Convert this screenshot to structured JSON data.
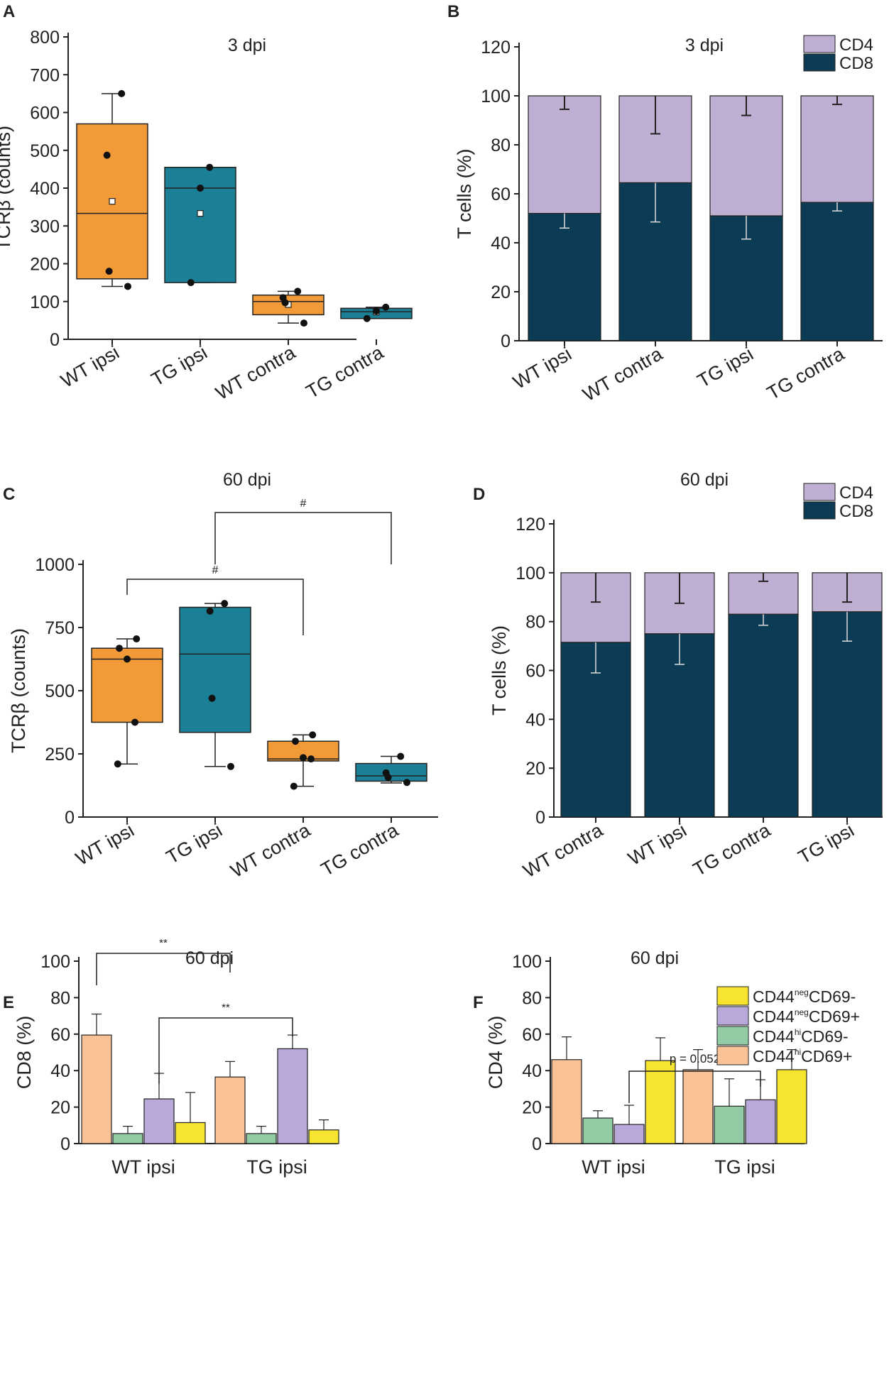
{
  "colors": {
    "orange": "#F39A38",
    "teal": "#1B7F96",
    "cd4": "#BFB0D3",
    "cd8": "#0C3B55",
    "salmon": "#F9C196",
    "mint": "#91CCA5",
    "lavender": "#B9A8DA",
    "yellow": "#F6E42E"
  },
  "chart_data": [
    {
      "panel": "A",
      "type": "box",
      "title": "3 dpi",
      "ylabel": "TCRβ (counts)",
      "ylim": [
        0,
        800
      ],
      "yticks": [
        "0",
        "100",
        "200",
        "300",
        "400",
        "500",
        "600",
        "700",
        "800"
      ],
      "categories": [
        "WT ipsi",
        "TG ipsi",
        "WT contra",
        "TG contra"
      ],
      "boxes": [
        {
          "q1": 160,
          "median": 333,
          "q3": 570,
          "min": 140,
          "max": 650,
          "mean": 365,
          "points": [
            650,
            487,
            180,
            140
          ]
        },
        {
          "q1": 150,
          "median": 400,
          "q3": 455,
          "min": 150,
          "max": 455,
          "mean": 333,
          "points": [
            455,
            400,
            150
          ]
        },
        {
          "q1": 65,
          "median": 100,
          "q3": 117,
          "min": 43,
          "max": 127,
          "mean": 92,
          "points": [
            127,
            110,
            97,
            43
          ]
        },
        {
          "q1": 55,
          "median": 73,
          "q3": 82,
          "min": 55,
          "max": 85,
          "mean": 72,
          "points": [
            85,
            75,
            55
          ]
        }
      ]
    },
    {
      "panel": "B",
      "type": "stacked-bar",
      "title": "3 dpi",
      "ylabel": "T cells (%)",
      "ylim": [
        0,
        120
      ],
      "yticks": [
        "0",
        "20",
        "40",
        "60",
        "80",
        "100",
        "120"
      ],
      "categories": [
        "WT ipsi",
        "WT contra",
        "TG ipsi",
        "TG contra"
      ],
      "series": [
        {
          "name": "CD8",
          "values": [
            52,
            64.5,
            51,
            56.5
          ],
          "errors": [
            6,
            16,
            9.5,
            3.5
          ]
        },
        {
          "name": "CD4",
          "values": [
            48,
            35.5,
            49,
            43.5
          ],
          "errors": [
            5.5,
            15.5,
            8,
            3.5
          ]
        }
      ],
      "legend": [
        "CD4",
        "CD8"
      ]
    },
    {
      "panel": "C",
      "type": "box",
      "title": "60 dpi",
      "ylabel": "TCRβ (counts)",
      "ylim": [
        0,
        1000
      ],
      "yticks": [
        "0",
        "250",
        "500",
        "750",
        "1000"
      ],
      "categories": [
        "WT ipsi",
        "TG ipsi",
        "WT contra",
        "TG contra"
      ],
      "boxes": [
        {
          "q1": 375,
          "median": 625,
          "q3": 668,
          "min": 210,
          "max": 705,
          "points": [
            705,
            668,
            625,
            375,
            210
          ]
        },
        {
          "q1": 335,
          "median": 645,
          "q3": 830,
          "min": 200,
          "max": 845,
          "points": [
            845,
            815,
            470,
            200
          ]
        },
        {
          "q1": 222,
          "median": 230,
          "q3": 300,
          "min": 122,
          "max": 325,
          "points": [
            325,
            300,
            235,
            230,
            122
          ]
        },
        {
          "q1": 142,
          "median": 163,
          "q3": 212,
          "min": 135,
          "max": 240,
          "points": [
            240,
            175,
            157,
            137
          ]
        }
      ],
      "significance": [
        {
          "from": "WT ipsi",
          "to": "WT contra",
          "label": "#"
        },
        {
          "from": "TG ipsi",
          "to": "TG contra",
          "label": "#"
        }
      ]
    },
    {
      "panel": "D",
      "type": "stacked-bar",
      "title": "60 dpi",
      "ylabel": "T cells (%)",
      "ylim": [
        0,
        120
      ],
      "yticks": [
        "0",
        "20",
        "40",
        "60",
        "80",
        "100",
        "120"
      ],
      "categories": [
        "WT contra",
        "WT ipsi",
        "TG contra",
        "TG ipsi"
      ],
      "series": [
        {
          "name": "CD8",
          "values": [
            71.5,
            75,
            83,
            84
          ],
          "errors": [
            12.5,
            12.5,
            4.5,
            12
          ]
        },
        {
          "name": "CD4",
          "values": [
            28.5,
            25,
            17,
            16
          ],
          "errors": [
            12,
            12.5,
            3.5,
            12
          ]
        }
      ],
      "legend": [
        "CD4",
        "CD8"
      ]
    },
    {
      "panel": "E",
      "type": "grouped-bar",
      "title": "60 dpi",
      "ylabel": "CD8 (%)",
      "ylim": [
        0,
        100
      ],
      "yticks": [
        "0",
        "20",
        "40",
        "60",
        "80",
        "100"
      ],
      "categories": [
        "WT ipsi",
        "TG ipsi"
      ],
      "series": [
        {
          "name": "CD44hiCD69+",
          "values": [
            59.5,
            36.5
          ],
          "errors": [
            11.5,
            8.5
          ]
        },
        {
          "name": "CD44hiCD69-",
          "values": [
            5.5,
            5.5
          ],
          "errors": [
            4,
            4
          ]
        },
        {
          "name": "CD44negCD69+",
          "values": [
            24.5,
            52
          ],
          "errors": [
            14,
            7.5
          ]
        },
        {
          "name": "CD44negCD69-",
          "values": [
            11.5,
            7.5
          ],
          "errors": [
            16.5,
            5.5
          ]
        }
      ],
      "significance": [
        {
          "label": "**",
          "between": "WT CD44hiCD69+ vs TG CD44hiCD69+"
        },
        {
          "label": "**",
          "between": "WT CD44negCD69+ vs TG CD44negCD69+"
        }
      ]
    },
    {
      "panel": "F",
      "type": "grouped-bar",
      "title": "60 dpi",
      "ylabel": "CD4 (%)",
      "ylim": [
        0,
        100
      ],
      "yticks": [
        "0",
        "20",
        "40",
        "60",
        "80",
        "100"
      ],
      "categories": [
        "WT ipsi",
        "TG ipsi"
      ],
      "series": [
        {
          "name": "CD44hiCD69+",
          "values": [
            46,
            40.5
          ],
          "errors": [
            12.5,
            11
          ]
        },
        {
          "name": "CD44hiCD69-",
          "values": [
            14,
            20.5
          ],
          "errors": [
            4,
            15
          ]
        },
        {
          "name": "CD44negCD69+",
          "values": [
            10.5,
            24
          ],
          "errors": [
            10.5,
            11
          ]
        },
        {
          "name": "CD44negCD69-",
          "values": [
            45.5,
            40.5
          ],
          "errors": [
            12.5,
            11
          ]
        }
      ],
      "significance": [
        {
          "label": "p = 0.052",
          "between": "WT CD44negCD69+ vs TG CD44negCD69+"
        }
      ],
      "legend": [
        {
          "base": "CD44",
          "sup": "neg",
          "tail": "CD69-"
        },
        {
          "base": "CD44",
          "sup": "neg",
          "tail": "CD69+"
        },
        {
          "base": "CD44",
          "sup": "hi",
          "tail": "CD69-"
        },
        {
          "base": "CD44",
          "sup": "hi",
          "tail": "CD69+"
        }
      ]
    }
  ]
}
